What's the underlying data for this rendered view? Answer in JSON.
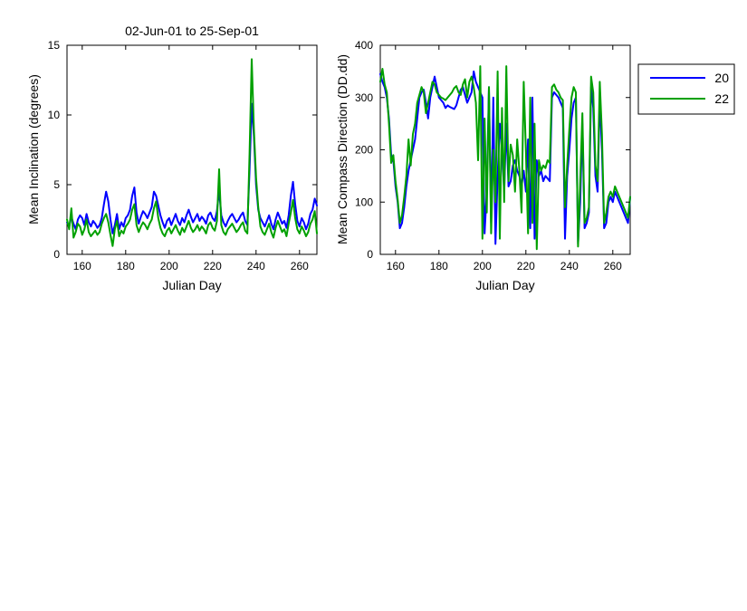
{
  "chart_data": [
    {
      "type": "line",
      "title": "02-Jun-01 to 25-Sep-01",
      "xlabel": "Julian Day",
      "ylabel": "Mean Inclination  (degrees)",
      "xlim": [
        153,
        268
      ],
      "ylim": [
        0,
        15
      ],
      "xticks": [
        160,
        180,
        200,
        220,
        240,
        260
      ],
      "yticks": [
        0,
        5,
        10,
        15
      ],
      "grid": false,
      "series": [
        {
          "name": "20",
          "color": "#0000ff",
          "x": [
            153,
            154,
            155,
            156,
            157,
            158,
            159,
            160,
            161,
            162,
            163,
            164,
            165,
            166,
            167,
            168,
            169,
            170,
            171,
            172,
            173,
            174,
            175,
            176,
            177,
            178,
            179,
            180,
            181,
            182,
            183,
            184,
            185,
            186,
            187,
            188,
            189,
            190,
            191,
            192,
            193,
            194,
            195,
            196,
            197,
            198,
            199,
            200,
            201,
            202,
            203,
            204,
            205,
            206,
            207,
            208,
            209,
            210,
            211,
            212,
            213,
            214,
            215,
            216,
            217,
            218,
            219,
            220,
            221,
            222,
            223,
            224,
            225,
            226,
            227,
            228,
            229,
            230,
            231,
            232,
            233,
            234,
            235,
            236,
            237,
            238,
            239,
            240,
            241,
            242,
            243,
            244,
            245,
            246,
            247,
            248,
            249,
            250,
            251,
            252,
            253,
            254,
            255,
            256,
            257,
            258,
            259,
            260,
            261,
            262,
            263,
            264,
            265,
            266,
            267,
            268
          ],
          "y": [
            2.3,
            2.0,
            2.7,
            2.2,
            1.8,
            2.5,
            2.8,
            2.6,
            2.1,
            2.9,
            2.3,
            2.0,
            2.4,
            2.2,
            1.9,
            2.1,
            2.6,
            3.6,
            4.5,
            3.8,
            2.5,
            1.5,
            2.1,
            2.9,
            1.8,
            2.3,
            2.0,
            2.6,
            2.8,
            3.2,
            4.2,
            4.8,
            3.0,
            2.2,
            2.7,
            3.1,
            2.9,
            2.6,
            3.0,
            3.4,
            4.5,
            4.2,
            3.5,
            2.8,
            2.3,
            1.9,
            2.4,
            2.6,
            2.1,
            2.5,
            2.9,
            2.4,
            2.1,
            2.6,
            2.3,
            2.8,
            3.2,
            2.7,
            2.3,
            2.6,
            2.9,
            2.4,
            2.7,
            2.5,
            2.2,
            2.8,
            3.0,
            2.6,
            2.4,
            3.1,
            4.6,
            2.8,
            2.3,
            2.0,
            2.4,
            2.7,
            2.9,
            2.6,
            2.3,
            2.5,
            2.8,
            3.0,
            2.4,
            2.1,
            6.0,
            10.8,
            8.5,
            5.0,
            3.2,
            2.6,
            2.3,
            2.0,
            2.4,
            2.8,
            2.2,
            1.8,
            2.5,
            3.0,
            2.6,
            2.2,
            2.4,
            1.9,
            2.8,
            4.2,
            5.2,
            3.6,
            2.4,
            2.0,
            2.6,
            2.3,
            1.8,
            2.2,
            2.9,
            3.2,
            4.0,
            3.5
          ]
        },
        {
          "name": "22",
          "color": "#00a000",
          "x": [
            153,
            154,
            155,
            156,
            157,
            158,
            159,
            160,
            161,
            162,
            163,
            164,
            165,
            166,
            167,
            168,
            169,
            170,
            171,
            172,
            173,
            174,
            175,
            176,
            177,
            178,
            179,
            180,
            181,
            182,
            183,
            184,
            185,
            186,
            187,
            188,
            189,
            190,
            191,
            192,
            193,
            194,
            195,
            196,
            197,
            198,
            199,
            200,
            201,
            202,
            203,
            204,
            205,
            206,
            207,
            208,
            209,
            210,
            211,
            212,
            213,
            214,
            215,
            216,
            217,
            218,
            219,
            220,
            221,
            222,
            223,
            224,
            225,
            226,
            227,
            228,
            229,
            230,
            231,
            232,
            233,
            234,
            235,
            236,
            237,
            238,
            239,
            240,
            241,
            242,
            243,
            244,
            245,
            246,
            247,
            248,
            249,
            250,
            251,
            252,
            253,
            254,
            255,
            256,
            257,
            258,
            259,
            260,
            261,
            262,
            263,
            264,
            265,
            266,
            267,
            268
          ],
          "y": [
            2.5,
            1.8,
            3.3,
            1.2,
            1.6,
            2.2,
            2.0,
            1.4,
            1.8,
            2.5,
            1.6,
            1.3,
            1.5,
            1.7,
            1.4,
            1.6,
            2.2,
            2.6,
            2.9,
            2.3,
            1.4,
            0.6,
            1.8,
            2.4,
            1.3,
            1.7,
            1.5,
            2.0,
            2.2,
            2.5,
            3.2,
            3.6,
            2.1,
            1.6,
            2.0,
            2.3,
            2.1,
            1.8,
            2.2,
            2.5,
            3.3,
            3.8,
            2.6,
            1.9,
            1.5,
            1.3,
            1.7,
            1.9,
            1.5,
            1.8,
            2.1,
            1.7,
            1.4,
            1.9,
            1.6,
            2.0,
            2.4,
            1.9,
            1.6,
            1.8,
            2.1,
            1.7,
            2.0,
            1.8,
            1.5,
            2.1,
            2.3,
            1.9,
            1.7,
            2.4,
            6.1,
            2.1,
            1.6,
            1.4,
            1.8,
            2.0,
            2.2,
            1.9,
            1.6,
            1.8,
            2.1,
            2.3,
            1.7,
            1.5,
            7.2,
            14.0,
            9.0,
            5.5,
            3.4,
            2.0,
            1.6,
            1.4,
            1.8,
            2.2,
            1.6,
            1.2,
            1.9,
            2.4,
            2.0,
            1.6,
            1.8,
            1.3,
            2.2,
            3.0,
            3.9,
            2.6,
            1.8,
            1.5,
            2.0,
            1.7,
            1.3,
            1.6,
            2.2,
            2.5,
            3.1,
            1.5
          ]
        }
      ]
    },
    {
      "type": "line",
      "title": "",
      "xlabel": "Julian Day",
      "ylabel": "Mean Compass Direction (DD.dd)",
      "xlim": [
        153,
        268
      ],
      "ylim": [
        0,
        400
      ],
      "xticks": [
        160,
        180,
        200,
        220,
        240,
        260
      ],
      "yticks": [
        0,
        100,
        200,
        300,
        400
      ],
      "grid": false,
      "legend": {
        "placement": "outside-right",
        "entries": [
          "20",
          "22"
        ]
      },
      "series": [
        {
          "name": "20",
          "color": "#0000ff",
          "x": [
            153,
            154,
            155,
            156,
            157,
            158,
            159,
            160,
            161,
            162,
            163,
            164,
            165,
            166,
            167,
            168,
            169,
            170,
            171,
            172,
            173,
            174,
            175,
            176,
            177,
            178,
            179,
            180,
            181,
            182,
            183,
            184,
            185,
            186,
            187,
            188,
            189,
            190,
            191,
            192,
            193,
            194,
            195,
            196,
            197,
            198,
            199,
            200,
            201,
            202,
            203,
            204,
            205,
            206,
            207,
            208,
            209,
            210,
            211,
            212,
            213,
            214,
            215,
            216,
            217,
            218,
            219,
            220,
            221,
            222,
            223,
            224,
            225,
            226,
            227,
            228,
            229,
            230,
            231,
            232,
            233,
            234,
            235,
            236,
            237,
            238,
            239,
            240,
            241,
            242,
            243,
            244,
            245,
            246,
            247,
            248,
            249,
            250,
            251,
            252,
            253,
            254,
            255,
            256,
            257,
            258,
            259,
            260,
            261,
            262,
            263,
            264,
            265,
            266,
            267,
            268
          ],
          "y": [
            345,
            330,
            320,
            300,
            260,
            190,
            180,
            130,
            100,
            50,
            60,
            90,
            130,
            160,
            180,
            200,
            220,
            260,
            300,
            310,
            315,
            290,
            260,
            300,
            320,
            340,
            320,
            300,
            295,
            290,
            280,
            285,
            282,
            280,
            278,
            285,
            300,
            315,
            320,
            305,
            290,
            300,
            310,
            350,
            330,
            320,
            310,
            300,
            40,
            120,
            320,
            60,
            300,
            20,
            150,
            250,
            200,
            120,
            250,
            130,
            140,
            170,
            180,
            160,
            150,
            130,
            160,
            120,
            220,
            50,
            300,
            30,
            180,
            150,
            160,
            140,
            150,
            145,
            140,
            300,
            310,
            305,
            300,
            290,
            280,
            30,
            150,
            200,
            260,
            290,
            300,
            20,
            100,
            250,
            50,
            60,
            80,
            320,
            280,
            150,
            120,
            300,
            200,
            50,
            60,
            100,
            110,
            100,
            120,
            110,
            100,
            90,
            80,
            70,
            60,
            110
          ]
        },
        {
          "name": "22",
          "color": "#00a000",
          "x": [
            153,
            154,
            155,
            156,
            157,
            158,
            159,
            160,
            161,
            162,
            163,
            164,
            165,
            166,
            167,
            168,
            169,
            170,
            171,
            172,
            173,
            174,
            175,
            176,
            177,
            178,
            179,
            180,
            181,
            182,
            183,
            184,
            185,
            186,
            187,
            188,
            189,
            190,
            191,
            192,
            193,
            194,
            195,
            196,
            197,
            198,
            199,
            200,
            201,
            202,
            203,
            204,
            205,
            206,
            207,
            208,
            209,
            210,
            211,
            212,
            213,
            214,
            215,
            216,
            217,
            218,
            219,
            220,
            221,
            222,
            223,
            224,
            225,
            226,
            227,
            228,
            229,
            230,
            231,
            232,
            233,
            234,
            235,
            236,
            237,
            238,
            239,
            240,
            241,
            242,
            243,
            244,
            245,
            246,
            247,
            248,
            249,
            250,
            251,
            252,
            253,
            254,
            255,
            256,
            257,
            258,
            259,
            260,
            261,
            262,
            263,
            264,
            265,
            266,
            267,
            268
          ],
          "y": [
            330,
            355,
            325,
            310,
            250,
            175,
            190,
            140,
            105,
            60,
            75,
            110,
            150,
            220,
            170,
            230,
            250,
            290,
            305,
            320,
            310,
            270,
            290,
            310,
            330,
            325,
            310,
            305,
            300,
            298,
            295,
            300,
            305,
            310,
            318,
            322,
            310,
            305,
            325,
            335,
            300,
            330,
            340,
            320,
            290,
            180,
            360,
            30,
            260,
            80,
            320,
            40,
            200,
            100,
            350,
            30,
            280,
            100,
            360,
            140,
            210,
            190,
            120,
            220,
            160,
            80,
            330,
            200,
            40,
            300,
            60,
            250,
            10,
            180,
            160,
            170,
            165,
            180,
            175,
            320,
            325,
            315,
            310,
            300,
            295,
            90,
            170,
            240,
            300,
            320,
            310,
            15,
            140,
            270,
            60,
            70,
            90,
            340,
            310,
            170,
            140,
            330,
            230,
            60,
            80,
            110,
            120,
            110,
            130,
            120,
            110,
            100,
            90,
            80,
            70,
            110
          ]
        }
      ]
    }
  ]
}
